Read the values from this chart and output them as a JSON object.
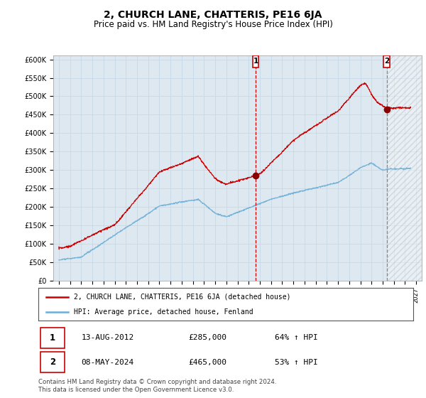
{
  "title": "2, CHURCH LANE, CHATTERIS, PE16 6JA",
  "subtitle": "Price paid vs. HM Land Registry's House Price Index (HPI)",
  "title_fontsize": 10,
  "subtitle_fontsize": 8.5,
  "ylabel_ticks": [
    "£0",
    "£50K",
    "£100K",
    "£150K",
    "£200K",
    "£250K",
    "£300K",
    "£350K",
    "£400K",
    "£450K",
    "£500K",
    "£550K",
    "£600K"
  ],
  "ytick_values": [
    0,
    50000,
    100000,
    150000,
    200000,
    250000,
    300000,
    350000,
    400000,
    450000,
    500000,
    550000,
    600000
  ],
  "ylim": [
    0,
    610000
  ],
  "xlim_start": 1994.5,
  "xlim_end": 2027.5,
  "xtick_years": [
    1995,
    1996,
    1997,
    1998,
    1999,
    2000,
    2001,
    2002,
    2003,
    2004,
    2005,
    2006,
    2007,
    2008,
    2009,
    2010,
    2011,
    2012,
    2013,
    2014,
    2015,
    2016,
    2017,
    2018,
    2019,
    2020,
    2021,
    2022,
    2023,
    2024,
    2025,
    2026,
    2027
  ],
  "hpi_color": "#6baed6",
  "price_color": "#cc0000",
  "vline1_color": "#cc0000",
  "vline2_color": "#888888",
  "grid_color": "#c8d8e8",
  "bg_color": "#dde8f0",
  "legend_label_price": "2, CHURCH LANE, CHATTERIS, PE16 6JA (detached house)",
  "legend_label_hpi": "HPI: Average price, detached house, Fenland",
  "transaction1_date": "13-AUG-2012",
  "transaction1_price": "£285,000",
  "transaction1_hpi": "64% ↑ HPI",
  "transaction1_year": 2012.62,
  "transaction1_value": 285000,
  "transaction2_date": "08-MAY-2024",
  "transaction2_price": "£465,000",
  "transaction2_hpi": "53% ↑ HPI",
  "transaction2_year": 2024.36,
  "transaction2_value": 465000,
  "footer": "Contains HM Land Registry data © Crown copyright and database right 2024.\nThis data is licensed under the Open Government Licence v3.0.",
  "hatch_region_start": 2024.36,
  "hatch_region_end": 2027.5
}
